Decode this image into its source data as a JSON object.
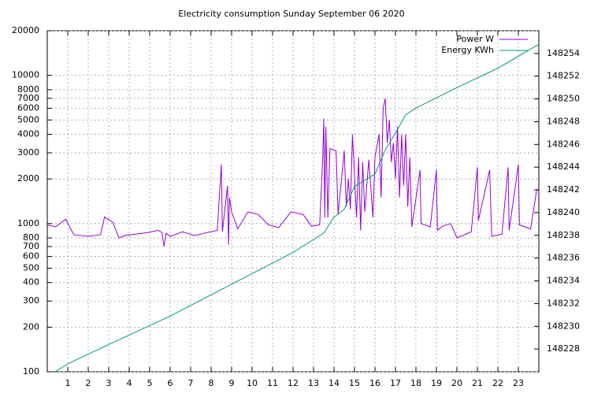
{
  "chart_data": {
    "type": "line",
    "title": "Electricity consumption Sunday September 06 2020",
    "xlim": [
      0,
      24
    ],
    "xticks": [
      1,
      2,
      3,
      4,
      5,
      6,
      7,
      8,
      9,
      10,
      11,
      12,
      13,
      14,
      15,
      16,
      17,
      18,
      19,
      20,
      21,
      22,
      23
    ],
    "ylim": [
      100,
      20000
    ],
    "yscale": "log",
    "yticks": [
      100,
      200,
      300,
      400,
      500,
      600,
      700,
      800,
      1000,
      2000,
      3000,
      4000,
      5000,
      6000,
      7000,
      8000,
      10000,
      20000
    ],
    "y2lim": [
      148226,
      148256
    ],
    "y2ticks": [
      148228,
      148230,
      148232,
      148234,
      148236,
      148238,
      148240,
      148242,
      148244,
      148246,
      148248,
      148250,
      148252,
      148254
    ],
    "grid": true,
    "legend": "top-right",
    "series": [
      {
        "name": "Power W",
        "color": "#9400d3",
        "x": [
          0,
          0.4,
          0.9,
          1.3,
          2,
          2.6,
          2.8,
          3.2,
          3.5,
          3.8,
          4.9,
          5.4,
          5.6,
          5.7,
          5.8,
          6.0,
          6.6,
          7.2,
          7.8,
          8.3,
          8.5,
          8.55,
          8.8,
          8.85,
          8.9,
          9.0,
          9.3,
          9.8,
          10.3,
          10.8,
          11.3,
          11.9,
          12.5,
          12.9,
          13.3,
          13.45,
          13.5,
          13.55,
          13.6,
          13.7,
          13.8,
          14.1,
          14.2,
          14.5,
          14.6,
          14.7,
          14.8,
          14.9,
          15.1,
          15.2,
          15.3,
          15.4,
          15.5,
          15.7,
          15.9,
          16.0,
          16.2,
          16.3,
          16.4,
          16.5,
          16.6,
          16.7,
          16.8,
          16.9,
          17.0,
          17.1,
          17.2,
          17.3,
          17.4,
          17.5,
          17.6,
          17.7,
          17.8,
          18.2,
          18.25,
          18.7,
          19.0,
          19.05,
          19.3,
          19.7,
          20.0,
          20.7,
          21.0,
          21.05,
          21.6,
          21.7,
          22.2,
          22.5,
          22.55,
          23.0,
          23.05,
          23.6,
          23.9,
          24
        ],
        "values": [
          980,
          950,
          1070,
          840,
          820,
          840,
          1110,
          1020,
          800,
          830,
          870,
          900,
          870,
          700,
          860,
          820,
          880,
          830,
          870,
          900,
          2500,
          880,
          1800,
          720,
          1500,
          1200,
          920,
          1200,
          1150,
          980,
          940,
          1200,
          1150,
          960,
          980,
          2800,
          5100,
          1100,
          4500,
          1100,
          3200,
          3100,
          1150,
          3100,
          1300,
          2000,
          1250,
          4000,
          1100,
          2800,
          900,
          2600,
          1200,
          2700,
          1100,
          2800,
          4000,
          1500,
          6000,
          7000,
          3500,
          5000,
          2600,
          3500,
          2000,
          4500,
          1500,
          4000,
          1800,
          4000,
          1300,
          2800,
          950,
          2300,
          1000,
          950,
          2300,
          900,
          960,
          1000,
          800,
          880,
          2400,
          1050,
          2300,
          820,
          850,
          2400,
          900,
          2500,
          980,
          920,
          1700,
          1700
        ]
      },
      {
        "name": "Energy KWh",
        "color": "#009e73",
        "axis": "y2",
        "x": [
          0.38,
          1,
          3,
          6,
          9,
          12,
          13.5,
          14,
          14.5,
          15,
          16,
          16.5,
          17,
          17.5,
          18,
          20,
          22,
          24
        ],
        "values": [
          148226,
          148226.7,
          148228.4,
          148230.9,
          148233.7,
          148236.5,
          148238.2,
          148239.6,
          148240.3,
          148242.3,
          148243.4,
          148245.5,
          148247,
          148248.6,
          148249.2,
          148251,
          148252.7,
          148254.8
        ]
      }
    ]
  }
}
